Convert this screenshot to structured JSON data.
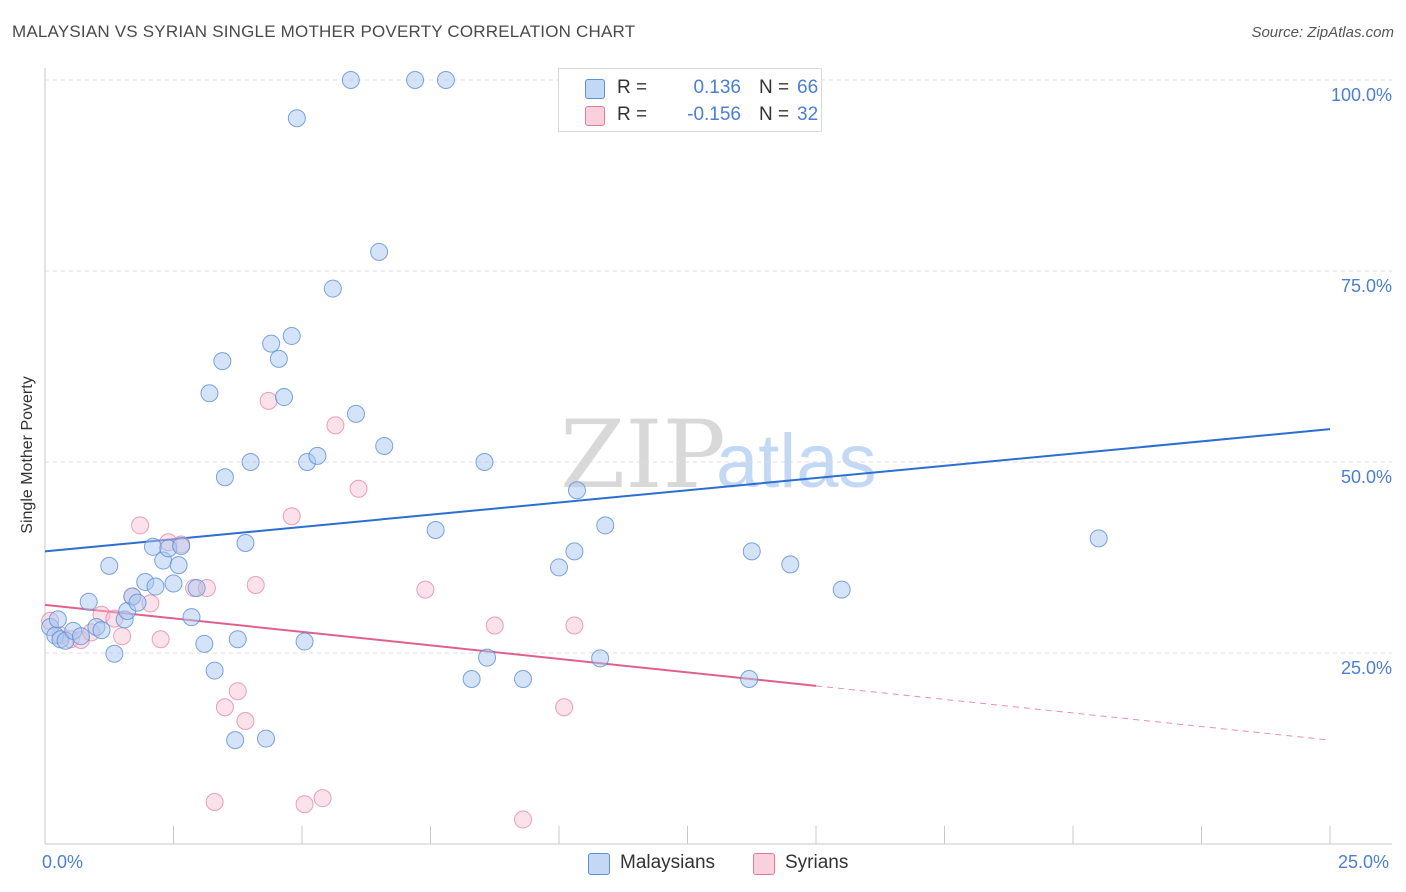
{
  "title": "MALAYSIAN VS SYRIAN SINGLE MOTHER POVERTY CORRELATION CHART",
  "source": "Source: ZipAtlas.com",
  "watermark": {
    "zip": "ZIP",
    "atlas": "atlas"
  },
  "legend": {
    "malaysians": {
      "r_label": "R =",
      "r_value": "0.136",
      "n_label": "N =",
      "n_value": "66"
    },
    "syrians": {
      "r_label": "R =",
      "r_value": "-0.156",
      "n_label": "N =",
      "n_value": "32"
    }
  },
  "bottom_legend": {
    "malaysians": "Malaysians",
    "syrians": "Syrians"
  },
  "colors": {
    "malaysian_fill": "#a9c8f0",
    "malaysian_stroke": "#5b8fd8",
    "malaysian_line": "#2a6fd1",
    "syrian_fill": "#f7bfd0",
    "syrian_stroke": "#e07a9c",
    "syrian_line": "#e0608c",
    "grid": "#dddddd",
    "axis_text": "#4a7fd4"
  },
  "chart_data": {
    "type": "scatter",
    "title": "MALAYSIAN VS SYRIAN SINGLE MOTHER POVERTY CORRELATION CHART",
    "xlabel": "",
    "ylabel": "Single Mother Poverty",
    "xlim": [
      0,
      25
    ],
    "ylim": [
      0,
      100
    ],
    "x_tick_labels": [
      "0.0%",
      "25.0%"
    ],
    "y_ticks": [
      {
        "value": 100,
        "label": "100.0%"
      },
      {
        "value": 75,
        "label": "75.0%"
      },
      {
        "value": 50,
        "label": "50.0%"
      },
      {
        "value": 25,
        "label": "25.0%"
      }
    ],
    "series": [
      {
        "name": "Malaysians",
        "r": 0.136,
        "n": 66,
        "trend": {
          "x0": 0,
          "y0": 38.3,
          "x1": 25,
          "y1": 54.3
        },
        "points": [
          [
            0.1,
            28.4
          ],
          [
            0.2,
            27.3
          ],
          [
            0.3,
            26.8
          ],
          [
            0.4,
            26.6
          ],
          [
            0.55,
            27.9
          ],
          [
            0.7,
            27.2
          ],
          [
            0.85,
            31.7
          ],
          [
            1.0,
            28.4
          ],
          [
            1.1,
            28.0
          ],
          [
            1.25,
            36.4
          ],
          [
            1.35,
            24.9
          ],
          [
            1.55,
            29.4
          ],
          [
            1.6,
            30.5
          ],
          [
            1.7,
            32.4
          ],
          [
            1.8,
            31.6
          ],
          [
            1.95,
            34.3
          ],
          [
            2.1,
            38.9
          ],
          [
            2.15,
            33.7
          ],
          [
            2.3,
            37.1
          ],
          [
            2.4,
            38.7
          ],
          [
            2.5,
            34.1
          ],
          [
            2.6,
            36.5
          ],
          [
            2.65,
            39.0
          ],
          [
            2.85,
            29.7
          ],
          [
            2.95,
            33.5
          ],
          [
            3.1,
            26.2
          ],
          [
            3.2,
            59.0
          ],
          [
            3.3,
            22.7
          ],
          [
            3.45,
            63.2
          ],
          [
            3.5,
            48.0
          ],
          [
            3.7,
            13.6
          ],
          [
            3.75,
            26.8
          ],
          [
            3.9,
            39.4
          ],
          [
            4.0,
            50.0
          ],
          [
            4.3,
            13.8
          ],
          [
            4.4,
            65.5
          ],
          [
            4.55,
            63.5
          ],
          [
            4.65,
            58.5
          ],
          [
            4.8,
            66.5
          ],
          [
            4.9,
            95.0
          ],
          [
            5.05,
            26.5
          ],
          [
            5.1,
            50.0
          ],
          [
            5.3,
            50.8
          ],
          [
            5.6,
            72.7
          ],
          [
            5.95,
            100.0
          ],
          [
            6.05,
            56.3
          ],
          [
            6.5,
            77.5
          ],
          [
            6.6,
            52.1
          ],
          [
            7.2,
            100.0
          ],
          [
            7.8,
            100.0
          ],
          [
            7.6,
            41.1
          ],
          [
            8.3,
            21.6
          ],
          [
            8.6,
            24.4
          ],
          [
            8.55,
            50.0
          ],
          [
            9.3,
            21.6
          ],
          [
            10.0,
            36.2
          ],
          [
            10.3,
            38.3
          ],
          [
            10.35,
            46.3
          ],
          [
            10.9,
            41.7
          ],
          [
            10.8,
            24.3
          ],
          [
            13.7,
            21.6
          ],
          [
            13.75,
            38.3
          ],
          [
            14.5,
            36.6
          ],
          [
            15.5,
            33.3
          ],
          [
            20.5,
            40.0
          ],
          [
            0.25,
            29.4
          ]
        ]
      },
      {
        "name": "Syrians",
        "r": -0.156,
        "n": 32,
        "trend": {
          "x0": 0,
          "y0": 31.3,
          "x1": 15.0,
          "y1": 20.7,
          "dash_to_x": 25,
          "dash_to_y": 13.6
        },
        "points": [
          [
            0.1,
            29.2
          ],
          [
            0.3,
            27.3
          ],
          [
            0.5,
            26.8
          ],
          [
            0.7,
            26.7
          ],
          [
            0.9,
            27.7
          ],
          [
            1.1,
            30.0
          ],
          [
            1.35,
            29.5
          ],
          [
            1.5,
            27.2
          ],
          [
            1.7,
            32.4
          ],
          [
            1.85,
            41.7
          ],
          [
            2.05,
            31.5
          ],
          [
            2.25,
            26.8
          ],
          [
            2.4,
            39.5
          ],
          [
            2.65,
            39.2
          ],
          [
            2.9,
            33.5
          ],
          [
            3.15,
            33.5
          ],
          [
            3.3,
            5.5
          ],
          [
            3.5,
            17.9
          ],
          [
            3.75,
            20.0
          ],
          [
            3.9,
            16.1
          ],
          [
            4.1,
            33.9
          ],
          [
            4.35,
            58.0
          ],
          [
            4.8,
            42.9
          ],
          [
            5.05,
            5.2
          ],
          [
            5.4,
            6.0
          ],
          [
            5.65,
            54.8
          ],
          [
            6.1,
            46.5
          ],
          [
            7.4,
            33.3
          ],
          [
            8.75,
            28.6
          ],
          [
            9.3,
            3.2
          ],
          [
            10.1,
            17.9
          ],
          [
            10.3,
            28.6
          ]
        ]
      }
    ]
  }
}
